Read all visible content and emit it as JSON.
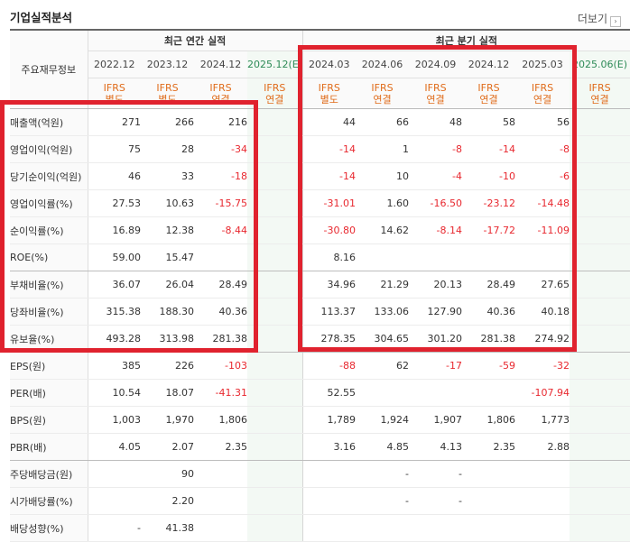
{
  "header": {
    "title": "기업실적분석",
    "more_label": "더보기"
  },
  "groups": {
    "corner": "주요재무정보",
    "annual": "최근 연간 실적",
    "quarterly": "최근 분기 실적"
  },
  "annual_periods": [
    "2022.12",
    "2023.12",
    "2024.12",
    "2025.12(E)"
  ],
  "annual_gaap": [
    "IFRS 별도",
    "IFRS 별도",
    "IFRS 연결",
    "IFRS 연결"
  ],
  "quarter_periods": [
    "2024.03",
    "2024.06",
    "2024.09",
    "2024.12",
    "2025.03",
    "2025.06(E)"
  ],
  "quarter_gaap": [
    "IFRS 별도",
    "IFRS 연결",
    "IFRS 연결",
    "IFRS 연결",
    "IFRS 연결",
    "IFRS 연결"
  ],
  "rows": [
    {
      "label": "매출액(억원)",
      "annual": [
        "271",
        "266",
        "216",
        ""
      ],
      "quarterly": [
        "44",
        "66",
        "48",
        "58",
        "56",
        ""
      ]
    },
    {
      "label": "영업이익(억원)",
      "annual": [
        "75",
        "28",
        "-34",
        ""
      ],
      "quarterly": [
        "-14",
        "1",
        "-8",
        "-14",
        "-8",
        ""
      ]
    },
    {
      "label": "당기순이익(억원)",
      "annual": [
        "46",
        "33",
        "-18",
        ""
      ],
      "quarterly": [
        "-14",
        "10",
        "-4",
        "-10",
        "-6",
        ""
      ]
    },
    {
      "label": "영업이익률(%)",
      "annual": [
        "27.53",
        "10.63",
        "-15.75",
        ""
      ],
      "quarterly": [
        "-31.01",
        "1.60",
        "-16.50",
        "-23.12",
        "-14.48",
        ""
      ]
    },
    {
      "label": "순이익률(%)",
      "annual": [
        "16.89",
        "12.38",
        "-8.44",
        ""
      ],
      "quarterly": [
        "-30.80",
        "14.62",
        "-8.14",
        "-17.72",
        "-11.09",
        ""
      ]
    },
    {
      "label": "ROE(%)",
      "annual": [
        "59.00",
        "15.47",
        "",
        ""
      ],
      "quarterly": [
        "8.16",
        "",
        "",
        "",
        "",
        ""
      ]
    },
    {
      "label": "부채비율(%)",
      "annual": [
        "36.07",
        "26.04",
        "28.49",
        ""
      ],
      "quarterly": [
        "34.96",
        "21.29",
        "20.13",
        "28.49",
        "27.65",
        ""
      ]
    },
    {
      "label": "당좌비율(%)",
      "annual": [
        "315.38",
        "188.30",
        "40.36",
        ""
      ],
      "quarterly": [
        "113.37",
        "133.06",
        "127.90",
        "40.36",
        "40.18",
        ""
      ]
    },
    {
      "label": "유보율(%)",
      "annual": [
        "493.28",
        "313.98",
        "281.38",
        ""
      ],
      "quarterly": [
        "278.35",
        "304.65",
        "301.20",
        "281.38",
        "274.92",
        ""
      ]
    },
    {
      "label": "EPS(원)",
      "annual": [
        "385",
        "226",
        "-103",
        ""
      ],
      "quarterly": [
        "-88",
        "62",
        "-17",
        "-59",
        "-32",
        ""
      ]
    },
    {
      "label": "PER(배)",
      "annual": [
        "10.54",
        "18.07",
        "-41.31",
        ""
      ],
      "quarterly": [
        "52.55",
        "",
        "",
        "",
        "-107.94",
        ""
      ]
    },
    {
      "label": "BPS(원)",
      "annual": [
        "1,003",
        "1,970",
        "1,806",
        ""
      ],
      "quarterly": [
        "1,789",
        "1,924",
        "1,907",
        "1,806",
        "1,773",
        ""
      ]
    },
    {
      "label": "PBR(배)",
      "annual": [
        "4.05",
        "2.07",
        "2.35",
        ""
      ],
      "quarterly": [
        "3.16",
        "4.85",
        "4.13",
        "2.35",
        "2.88",
        ""
      ]
    },
    {
      "label": "주당배당금(원)",
      "annual": [
        "",
        "90",
        "",
        ""
      ],
      "quarterly": [
        "",
        "-",
        "-",
        "",
        "",
        ""
      ]
    },
    {
      "label": "시가배당률(%)",
      "annual": [
        "",
        "2.20",
        "",
        ""
      ],
      "quarterly": [
        "",
        "-",
        "-",
        "",
        "",
        ""
      ]
    },
    {
      "label": "배당성향(%)",
      "annual": [
        "-",
        "41.38",
        "",
        ""
      ],
      "quarterly": [
        "",
        "",
        "",
        "",
        "",
        ""
      ]
    }
  ],
  "highlight_color": "#e0222e",
  "negative_color": "#e8282f",
  "gaap_color": "#e06c1b",
  "estimate_color": "#2e8b57"
}
